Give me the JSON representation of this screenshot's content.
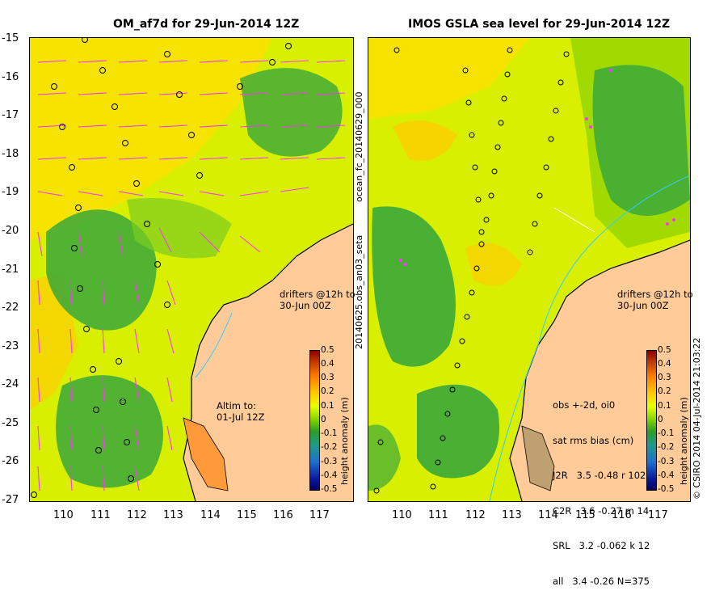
{
  "left_panel": {
    "title": "OM_af7d for 29-Jun-2014 12Z",
    "annotation_drifters": [
      "drifters @12h to",
      "30-Jun 00Z"
    ],
    "annotation_altim": [
      "Altim to:",
      "01-Jul 12Z"
    ]
  },
  "right_panel": {
    "title": "IMOS GSLA sea level  for 29-Jun-2014 12Z",
    "annotation_drifters": [
      "drifters @12h to",
      "30-Jun 00Z"
    ],
    "stats": [
      "obs +-2d, oi0",
      "sat rms bias (cm)",
      "J2R   3.5 -0.48 r 102",
      "C2R   3.6 -0.27 m 14",
      "SRL   3.2 -0.062 k 12",
      "all   3.4 -0.26 N=375"
    ]
  },
  "side_labels": {
    "forecast": "ocean_fc_20140629_000",
    "obs": "20140625.obs_an03_seta",
    "credit": "© CSIRO 2014   04-Jul-2014 21:03:22"
  },
  "axes": {
    "lat_ticks": [
      "-15",
      "-16",
      "-17",
      "-18",
      "-19",
      "-20",
      "-21",
      "-22",
      "-23",
      "-24",
      "-25",
      "-26",
      "-27"
    ],
    "lon_ticks": [
      "110",
      "111",
      "112",
      "113",
      "114",
      "115",
      "116",
      "117"
    ]
  },
  "colorbar": {
    "label": "height anomaly (m)",
    "ticks": [
      "0.5",
      "0.4",
      "0.3",
      "0.2",
      "0.1",
      "0",
      "-0.1",
      "-0.2",
      "-0.3",
      "-0.4",
      "-0.5"
    ]
  },
  "colors": {
    "land": "#ffcc99",
    "vectors": "#ff33ff",
    "field_high": "#ffd000",
    "field_mid": "#c8f000",
    "field_low": "#2fa82f",
    "coast": "#000000",
    "river": "#33ccff"
  }
}
